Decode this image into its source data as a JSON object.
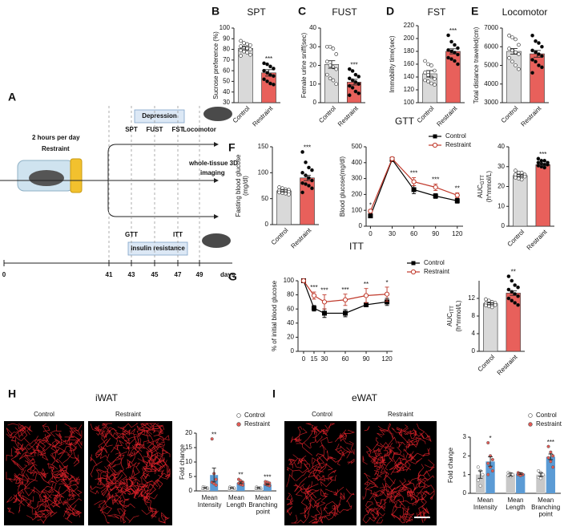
{
  "timeline": {
    "panel": "A",
    "daily": "2 hours per day",
    "stress": "Restraint",
    "depression": "Depression",
    "tests": [
      "SPT",
      "FUST",
      "FST",
      "Locomotor"
    ],
    "imaging": [
      "whole-tissue 3D",
      "imaging"
    ],
    "metabolic": [
      "GTT",
      "ITT"
    ],
    "insulin": "Insulin resistance",
    "days": [
      0,
      41,
      43,
      45,
      47,
      49
    ],
    "unit": "days"
  },
  "panel_h": {
    "panel": "H",
    "title": "iWAT",
    "images": [
      "Control",
      "Restraint"
    ]
  },
  "panel_i": {
    "panel": "I",
    "title": "eWAT",
    "images": [
      "Control",
      "Restraint"
    ]
  },
  "chart_data": [
    {
      "type": "bar",
      "panel": "B",
      "title": "SPT",
      "ylabel": "Sucrose preference (%)",
      "categories": [
        "Control",
        "Restraint"
      ],
      "values": [
        81,
        58
      ],
      "errors": [
        1.5,
        3
      ],
      "colors": [
        "#d9d9d9",
        "#e8605b"
      ],
      "point_colors": [
        "#ffffff",
        "#000000"
      ],
      "points": [
        [
          88,
          86,
          85,
          84,
          83,
          82,
          81,
          80,
          79,
          78,
          77,
          75,
          74
        ],
        [
          67,
          66,
          64,
          62,
          60,
          58,
          56,
          55,
          52,
          50,
          48,
          47
        ]
      ],
      "significance": [
        null,
        "***"
      ],
      "ylim": [
        30,
        100
      ],
      "yticks": [
        30,
        40,
        50,
        60,
        70,
        80,
        90,
        100
      ]
    },
    {
      "type": "bar",
      "panel": "C",
      "title": "FUST",
      "ylabel": "Female urine sniff(sec)",
      "categories": [
        "Control",
        "Restraint"
      ],
      "values": [
        20.5,
        11
      ],
      "errors": [
        2,
        1.5
      ],
      "colors": [
        "#d9d9d9",
        "#e8605b"
      ],
      "point_colors": [
        "#ffffff",
        "#000000"
      ],
      "points": [
        [
          30,
          30,
          29,
          26,
          22,
          20,
          19,
          18,
          15,
          13,
          12,
          10
        ],
        [
          18,
          17,
          15,
          14,
          13,
          12,
          11,
          10,
          9,
          8,
          6,
          5,
          4
        ]
      ],
      "significance": [
        null,
        "***"
      ],
      "ylim": [
        0,
        40
      ],
      "yticks": [
        0,
        10,
        20,
        30,
        40
      ]
    },
    {
      "type": "bar",
      "panel": "D",
      "title": "FST",
      "ylabel": "Immobility time(sec)",
      "categories": [
        "Control",
        "Restraint"
      ],
      "values": [
        145,
        180
      ],
      "errors": [
        5,
        4
      ],
      "colors": [
        "#d9d9d9",
        "#e8605b"
      ],
      "point_colors": [
        "#ffffff",
        "#000000"
      ],
      "points": [
        [
          165,
          160,
          158,
          150,
          147,
          143,
          140,
          137,
          135,
          133,
          130,
          128
        ],
        [
          205,
          195,
          190,
          185,
          182,
          180,
          178,
          175,
          170,
          168,
          165,
          160
        ]
      ],
      "significance": [
        null,
        "***"
      ],
      "ylim": [
        100,
        220
      ],
      "yticks": [
        100,
        120,
        140,
        160,
        180,
        200,
        220
      ]
    },
    {
      "type": "bar",
      "panel": "E",
      "title": "Locomotor",
      "ylabel": "Total distance traveled(cm)",
      "categories": [
        "Control",
        "Restraint"
      ],
      "values": [
        5750,
        5620
      ],
      "errors": [
        150,
        180
      ],
      "colors": [
        "#d9d9d9",
        "#e8605b"
      ],
      "point_colors": [
        "#ffffff",
        "#000000"
      ],
      "points": [
        [
          6600,
          6500,
          6400,
          6100,
          5900,
          5800,
          5700,
          5600,
          5400,
          5200,
          5000,
          4800
        ],
        [
          6600,
          6300,
          6200,
          6000,
          5800,
          5700,
          5600,
          5500,
          5300,
          5200,
          5000,
          4900,
          4600
        ]
      ],
      "significance": [
        null,
        null
      ],
      "ylim": [
        3000,
        7000
      ],
      "yticks": [
        3000,
        4000,
        5000,
        6000,
        7000
      ]
    },
    {
      "type": "bar",
      "panel": "F",
      "ylabel": [
        "Fasting blood glucose",
        "(mg/dl)"
      ],
      "categories": [
        "Control",
        "Restraint"
      ],
      "values": [
        65,
        90
      ],
      "errors": [
        2,
        5
      ],
      "colors": [
        "#d9d9d9",
        "#e8605b"
      ],
      "point_colors": [
        "#ffffff",
        "#000000"
      ],
      "points": [
        [
          72,
          70,
          68,
          67,
          66,
          65,
          64,
          63,
          62,
          61,
          60,
          58
        ],
        [
          140,
          120,
          110,
          105,
          100,
          95,
          90,
          85,
          80,
          78,
          75,
          70,
          62
        ]
      ],
      "significance": [
        null,
        "***"
      ],
      "ylim": [
        0,
        150
      ],
      "yticks": [
        0,
        50,
        100,
        150
      ]
    },
    {
      "type": "line",
      "title": "GTT",
      "ylabel": "Blood glucose(mg/dl)",
      "x": [
        0,
        30,
        60,
        90,
        120
      ],
      "series": [
        {
          "name": "Control",
          "color": "#000000",
          "marker": "square",
          "values": [
            65,
            420,
            230,
            190,
            160
          ],
          "errors": [
            8,
            10,
            25,
            15,
            15
          ]
        },
        {
          "name": "Restraint",
          "color": "#c0392b",
          "marker": "circle",
          "values": [
            95,
            425,
            280,
            245,
            195
          ],
          "errors": [
            10,
            10,
            25,
            20,
            15
          ]
        }
      ],
      "significance": [
        "*",
        null,
        "***",
        "***",
        "**"
      ],
      "xlim": [
        -6,
        128
      ],
      "xticks": [
        0,
        30,
        60,
        90,
        120
      ],
      "ylim": [
        0,
        500
      ],
      "yticks": [
        0,
        100,
        200,
        300,
        400,
        500
      ]
    },
    {
      "type": "bar",
      "ylabel": "AUC",
      "ylabel_sub": "GTT",
      "ylabel_unit": "(h*mmol/L)",
      "categories": [
        "Control",
        "Restraint"
      ],
      "values": [
        25.5,
        31
      ],
      "errors": [
        0.5,
        0.6
      ],
      "colors": [
        "#d9d9d9",
        "#e8605b"
      ],
      "point_colors": [
        "#ffffff",
        "#000000"
      ],
      "points": [
        [
          28,
          27,
          27,
          26,
          26,
          25.5,
          25,
          25,
          24.5,
          24,
          23.5
        ],
        [
          34,
          33,
          33,
          32,
          32,
          31.5,
          31,
          31,
          30.5,
          30,
          29.5
        ]
      ],
      "significance": [
        null,
        "***"
      ],
      "ylim": [
        0,
        40
      ],
      "yticks": [
        0,
        10,
        20,
        30,
        40
      ]
    },
    {
      "type": "line",
      "panel": "G",
      "title": "ITT",
      "ylabel": "% of initial blood glucose",
      "x": [
        0,
        15,
        30,
        60,
        90,
        120
      ],
      "series": [
        {
          "name": "Control",
          "color": "#000000",
          "marker": "square",
          "values": [
            100,
            61,
            54,
            54,
            66,
            70
          ],
          "errors": [
            0,
            4,
            6,
            5,
            3,
            5
          ]
        },
        {
          "name": "Restraint",
          "color": "#c0392b",
          "marker": "circle",
          "values": [
            100,
            79,
            70,
            73,
            79,
            81
          ],
          "errors": [
            0,
            5,
            10,
            8,
            10,
            10
          ]
        }
      ],
      "significance": [
        null,
        "***",
        "***",
        "***",
        "**",
        "*"
      ],
      "xlim": [
        -8,
        128
      ],
      "xticks": [
        0,
        15,
        30,
        60,
        90,
        120
      ],
      "ylim": [
        0,
        100
      ],
      "yticks": [
        0,
        20,
        40,
        60,
        80,
        100
      ]
    },
    {
      "type": "bar",
      "ylabel": "AUC",
      "ylabel_sub": "ITT",
      "ylabel_unit": "(h*mmol/L)",
      "categories": [
        "Control",
        "Restraint"
      ],
      "values": [
        10.8,
        13.2
      ],
      "errors": [
        0.2,
        0.5
      ],
      "colors": [
        "#d9d9d9",
        "#e8605b"
      ],
      "point_colors": [
        "#ffffff",
        "#000000"
      ],
      "points": [
        [
          11.8,
          11.5,
          11.2,
          11,
          10.9,
          10.8,
          10.6,
          10.5,
          10.4,
          10.2,
          10
        ],
        [
          17,
          16,
          15,
          14.5,
          14,
          13.5,
          13,
          12.5,
          12,
          11.5,
          11,
          10.5
        ]
      ],
      "significance": [
        null,
        "**"
      ],
      "ylim": [
        0,
        16
      ],
      "yticks": [
        0,
        4,
        8,
        12
      ]
    },
    {
      "type": "grouped_bar",
      "ylabel": "Fold change",
      "categories": [
        [
          "Mean",
          "Intensity"
        ],
        [
          "Mean",
          "Length"
        ],
        [
          "Mean",
          "Branching",
          "point"
        ]
      ],
      "series": [
        {
          "name": "Control",
          "color": "#c8c8c8",
          "point_color": "#ffffff",
          "values": [
            1,
            1,
            1
          ],
          "errors": [
            0.15,
            0.1,
            0.1
          ],
          "points": [
            [
              1.4,
              1.2,
              1,
              0.8,
              0.6
            ],
            [
              1.3,
              1.1,
              1,
              0.9,
              0.7
            ],
            [
              1.3,
              1.1,
              1,
              0.9,
              0.8
            ]
          ]
        },
        {
          "name": "Restraint",
          "color": "#5b9bd5",
          "point_color": "#e35a55",
          "values": [
            5.5,
            2.8,
            2.3
          ],
          "errors": [
            2.4,
            0.3,
            0.2
          ],
          "points": [
            [
              18,
              6,
              4,
              3,
              2.5,
              2
            ],
            [
              4,
              3.5,
              3,
              2.6,
              2.2,
              2
            ],
            [
              3.2,
              3,
              2.7,
              2.3,
              2,
              1.8
            ]
          ]
        }
      ],
      "significance": [
        "**",
        "**",
        "***"
      ],
      "ylim": [
        0,
        20
      ],
      "yticks": [
        0,
        5,
        10,
        15,
        20
      ]
    },
    {
      "type": "grouped_bar",
      "ylabel": "Fold change",
      "categories": [
        [
          "Mean",
          "Intensity"
        ],
        [
          "Mean",
          "Length"
        ],
        [
          "Mean",
          "Branching",
          "point"
        ]
      ],
      "series": [
        {
          "name": "Control",
          "color": "#c8c8c8",
          "point_color": "#ffffff",
          "values": [
            1,
            1,
            1
          ],
          "errors": [
            0.2,
            0.08,
            0.1
          ],
          "points": [
            [
              1.4,
              1.2,
              1,
              0.7,
              0.4
            ],
            [
              1.1,
              1.05,
              1,
              0.95,
              0.9
            ],
            [
              1.2,
              1.1,
              1,
              0.85,
              0.8
            ]
          ]
        },
        {
          "name": "Restraint",
          "color": "#5b9bd5",
          "point_color": "#e35a55",
          "values": [
            1.7,
            1.05,
            1.95
          ],
          "errors": [
            0.25,
            0.05,
            0.15
          ],
          "points": [
            [
              2.7,
              2,
              1.8,
              1.6,
              1.4,
              1.2,
              1
            ],
            [
              1.1,
              1.05,
              1,
              1,
              0.95,
              1
            ],
            [
              2.5,
              2.2,
              2,
              1.9,
              1.7,
              1.4
            ]
          ]
        }
      ],
      "significance": [
        "*",
        null,
        "***"
      ],
      "ylim": [
        0,
        3
      ],
      "yticks": [
        0,
        1,
        2,
        3
      ]
    }
  ]
}
